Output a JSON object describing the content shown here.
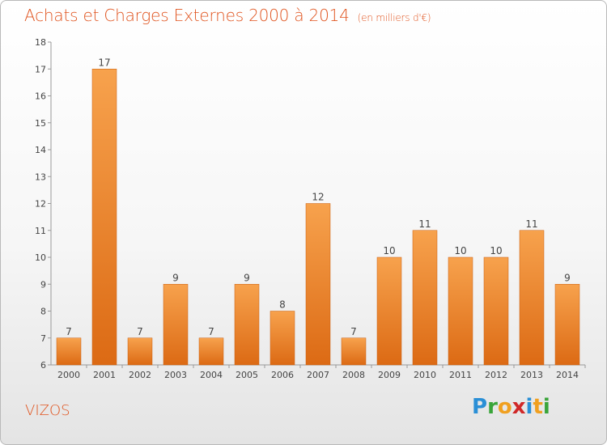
{
  "header": {
    "title": "Achats et Charges Externes 2000 à 2014",
    "unit": "(en milliers d'€)"
  },
  "footer": {
    "commune": "VIZOS",
    "brand": "Proxiti",
    "brand_letters": [
      "P",
      "r",
      "o",
      "x",
      "i",
      "t",
      "i"
    ],
    "brand_colors": [
      "#2a8fd6",
      "#3aa53a",
      "#f0a020",
      "#d02828",
      "#2a8fd6",
      "#f0a020",
      "#3aa53a"
    ]
  },
  "colors": {
    "accent": "#e0541f",
    "bar_top": "#f7a24d",
    "bar_bottom": "#dc6a14",
    "bar_stroke": "#c95f10"
  },
  "chart_data": {
    "type": "bar",
    "title": "Achats et Charges Externes 2000 à 2014",
    "subtitle": "(en milliers d'€)",
    "categories": [
      "2000",
      "2001",
      "2002",
      "2003",
      "2004",
      "2005",
      "2006",
      "2007",
      "2008",
      "2009",
      "2010",
      "2011",
      "2012",
      "2013",
      "2014"
    ],
    "values": [
      7,
      17,
      7,
      9,
      7,
      9,
      8,
      12,
      7,
      10,
      11,
      10,
      10,
      11,
      9
    ],
    "xlabel": "",
    "ylabel": "",
    "ylim": [
      6,
      18
    ],
    "yticks": [
      6,
      7,
      8,
      9,
      10,
      11,
      12,
      13,
      14,
      15,
      16,
      17,
      18
    ],
    "grid": false,
    "legend": "none"
  }
}
